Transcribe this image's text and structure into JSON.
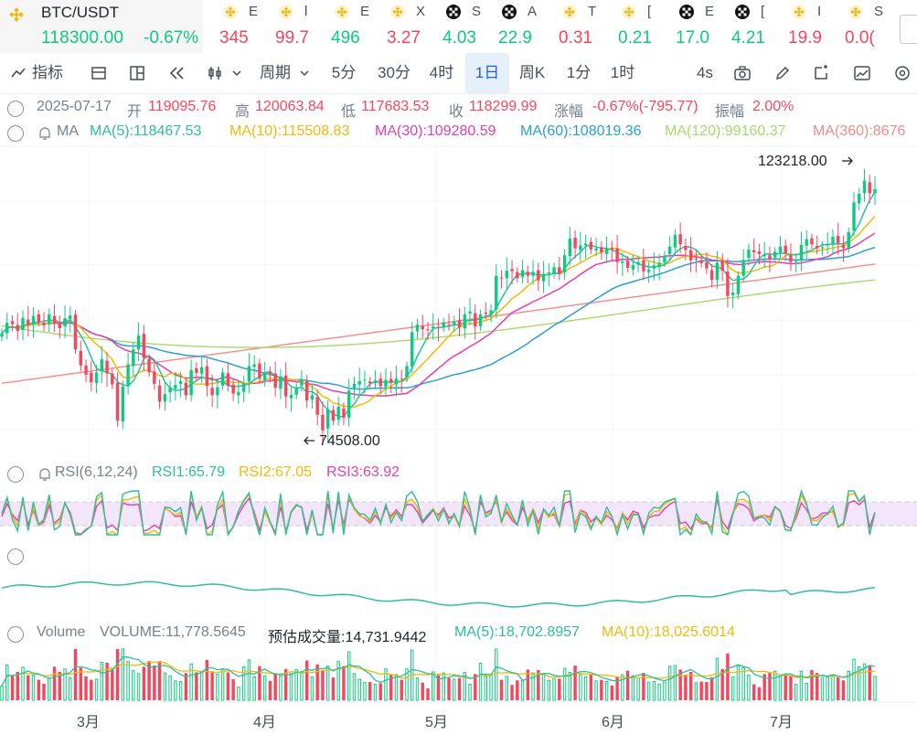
{
  "ticker_main": {
    "symbol": "BTC/USDT",
    "price": "118300.00",
    "change": "-0.67%"
  },
  "tickers": [
    {
      "name": "E",
      "value": "345",
      "trend": "dn",
      "icon": "binance-icon"
    },
    {
      "name": "l",
      "value": "99.7",
      "trend": "dn",
      "icon": "binance-icon"
    },
    {
      "name": "E",
      "value": "496",
      "trend": "up",
      "icon": "binance-icon"
    },
    {
      "name": "X",
      "value": "3.27",
      "trend": "dn",
      "icon": "binance-icon"
    },
    {
      "name": "S",
      "value": "4.03",
      "trend": "up",
      "icon": "ok-icon"
    },
    {
      "name": "A",
      "value": "22.9",
      "trend": "up",
      "icon": "ok-icon"
    },
    {
      "name": "T",
      "value": "0.31",
      "trend": "dn",
      "icon": "binance-icon"
    },
    {
      "name": "[",
      "value": "0.21",
      "trend": "up",
      "icon": "binance-icon"
    },
    {
      "name": "E",
      "value": "17.0",
      "trend": "up",
      "icon": "ok-icon"
    },
    {
      "name": "[",
      "value": "4.21",
      "trend": "up",
      "icon": "ok-icon"
    },
    {
      "name": "I",
      "value": "19.9",
      "trend": "dn",
      "icon": "binance-icon"
    },
    {
      "name": "S",
      "value": "0.0(",
      "trend": "dn",
      "icon": "binance-icon"
    }
  ],
  "toolbar": {
    "indicators": "指标",
    "period": "周期",
    "intervals": [
      "5分",
      "30分",
      "4时",
      "1日",
      "周K",
      "1分",
      "1时"
    ],
    "active_interval": "1日",
    "refresh": "4s"
  },
  "ohlc": {
    "date": "2025-07-17",
    "open_label": "开",
    "open": "119095.76",
    "high_label": "高",
    "high": "120063.84",
    "low_label": "低",
    "low": "117683.53",
    "close_label": "收",
    "close": "118299.99",
    "change_label": "涨幅",
    "change": "-0.67%(-795.77)",
    "amplitude_label": "振幅",
    "amplitude": "2.00%"
  },
  "ma_info": {
    "name": "MA",
    "ma5": "MA(5):118467.53",
    "ma10": "MA(10):115508.83",
    "ma30": "MA(30):109280.59",
    "ma60": "MA(60):108019.36",
    "ma120": "MA(120):99160.37",
    "ma360": "MA(360):8676"
  },
  "rsi_info": {
    "name": "RSI(6,12,24)",
    "rsi1": "RSI1:65.79",
    "rsi2": "RSI2:67.05",
    "rsi3": "RSI3:63.92"
  },
  "volume_info": {
    "name": "Volume",
    "volume": "VOLUME:11,778.5645",
    "est": "预估成交量:14,731.9442",
    "ma5": "MA(5):18,702.8957",
    "ma10": "MA(10):18,025.6014"
  },
  "annotations": {
    "max": "123218.00",
    "min": "74508.00"
  },
  "x_labels": [
    "3月",
    "4月",
    "5月",
    "6月",
    "7月"
  ],
  "colors": {
    "up": "#0ecb81",
    "down": "#f6465d",
    "ma5": "#2ebd9f",
    "ma10": "#f0b90b",
    "ma30": "#e03fb0",
    "ma60": "#2a9fd6",
    "ma120": "#a9d86e",
    "ma360": "#f58a8a"
  },
  "chart_data": {
    "type": "candlestick",
    "price_range": [
      74508,
      123218
    ],
    "closes": [
      93200,
      95000,
      94800,
      93600,
      95900,
      94700,
      96200,
      95200,
      94600,
      96500,
      95000,
      94100,
      95800,
      96300,
      90400,
      87600,
      86000,
      84700,
      86400,
      88700,
      86200,
      84300,
      78000,
      83900,
      87800,
      90400,
      92800,
      88900,
      86400,
      84400,
      81300,
      82600,
      83700,
      84200,
      84900,
      82400,
      86800,
      86300,
      87300,
      84000,
      82400,
      83800,
      86400,
      84100,
      82700,
      83000,
      84500,
      87500,
      87800,
      85300,
      86400,
      85900,
      83700,
      85700,
      82200,
      82500,
      83800,
      85000,
      81500,
      82400,
      79000,
      76300,
      80000,
      78000,
      80400,
      78500,
      83200,
      84400,
      84900,
      85100,
      84500,
      85000,
      84000,
      85100,
      84600,
      85300,
      85200,
      87500,
      93400,
      94700,
      93900,
      93800,
      94400,
      94100,
      95100,
      94700,
      95200,
      94200,
      96500,
      97000,
      94400,
      96500,
      96600,
      97200,
      103200,
      102800,
      104100,
      104000,
      102800,
      104200,
      103200,
      103900,
      102400,
      103500,
      103800,
      104700,
      103500,
      106800,
      109700,
      108000,
      108500,
      108800,
      107800,
      108000,
      107300,
      108000,
      107700,
      105600,
      105700,
      104600,
      105100,
      105600,
      104000,
      104300,
      105000,
      105500,
      106700,
      108300,
      110300,
      108700,
      107700,
      105900,
      106100,
      105400,
      104500,
      102500,
      105500,
      104100,
      99700,
      100300,
      103200,
      106000,
      107800,
      107300,
      107000,
      106800,
      106100,
      107400,
      108300,
      107100,
      105600,
      105800,
      108600,
      109600,
      108700,
      108000,
      108200,
      108800,
      110000,
      108900,
      108000,
      110800,
      116000,
      117500,
      119800,
      117600,
      118300
    ],
    "rsi1_range": [
      30,
      80
    ],
    "volume_max": 27000
  }
}
